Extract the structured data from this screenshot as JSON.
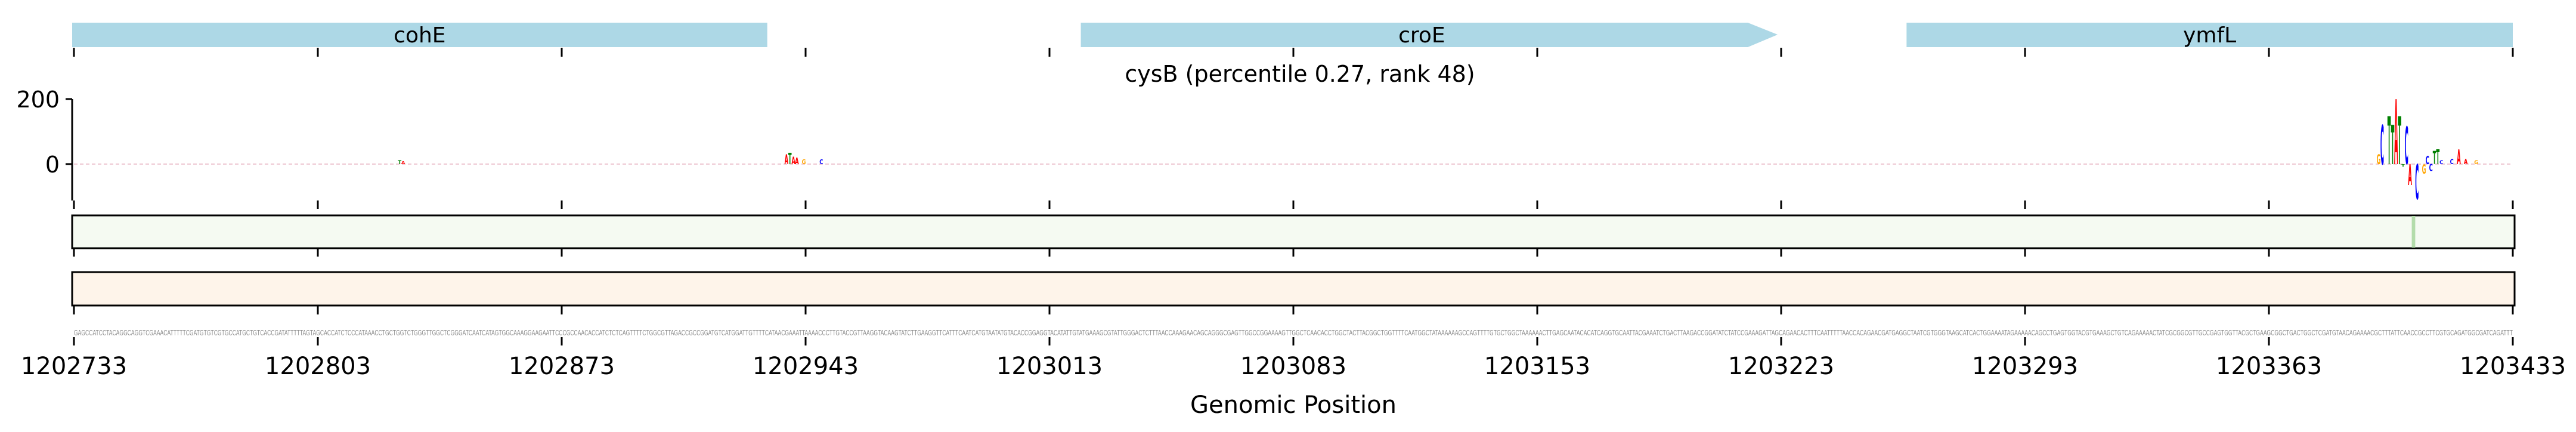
{
  "chart_data": {
    "type": "sequence-logo",
    "title": "cysB (percentile 0.27, rank 48)",
    "xlabel": "Genomic Position",
    "xlim": [
      1202733,
      1203433
    ],
    "x_ticks": [
      "1202733",
      "1202803",
      "1202873",
      "1202943",
      "1203013",
      "1203083",
      "1203153",
      "1203223",
      "1203293",
      "1203363",
      "1203433"
    ],
    "y_ticks": [
      "200",
      "0"
    ],
    "ylim": [
      -110,
      210
    ],
    "genes": [
      {
        "name": "cohE",
        "start": 1202732,
        "end": 1202932,
        "strand": "none"
      },
      {
        "name": "croE",
        "start": 1203022,
        "end": 1203222,
        "strand": "+"
      },
      {
        "name": "ymfL",
        "start": 1203259,
        "end": 1203433,
        "strand": "none"
      }
    ],
    "logo_letters": [
      {
        "pos": 93,
        "base": "T",
        "value": 12
      },
      {
        "pos": 94,
        "base": "A",
        "value": 10
      },
      {
        "pos": 204,
        "base": "A",
        "value": 30
      },
      {
        "pos": 205,
        "base": "T",
        "value": 35
      },
      {
        "pos": 206,
        "base": "A",
        "value": 22
      },
      {
        "pos": 207,
        "base": "A",
        "value": 20
      },
      {
        "pos": 209,
        "base": "G",
        "value": 14
      },
      {
        "pos": 214,
        "base": "C",
        "value": 14
      },
      {
        "pos": 661,
        "base": "G",
        "value": 30
      },
      {
        "pos": 662,
        "base": "C",
        "value": 121
      },
      {
        "pos": 664,
        "base": "T",
        "value": 147
      },
      {
        "pos": 665,
        "base": "T",
        "value": 121
      },
      {
        "pos": 666,
        "base": "A",
        "value": 200
      },
      {
        "pos": 667,
        "base": "T",
        "value": 147
      },
      {
        "pos": 668,
        "base": "T",
        "value": -8
      },
      {
        "pos": 669,
        "base": "C",
        "value": 116
      },
      {
        "pos": 670,
        "base": "A",
        "value": -64
      },
      {
        "pos": 672,
        "base": "C",
        "value": -108
      },
      {
        "pos": 674,
        "base": "G",
        "value": -29
      },
      {
        "pos": 675,
        "base": "C",
        "value": 25
      },
      {
        "pos": 676,
        "base": "C",
        "value": -22
      },
      {
        "pos": 677,
        "base": "T",
        "value": 40
      },
      {
        "pos": 678,
        "base": "T",
        "value": 45
      },
      {
        "pos": 679,
        "base": "C",
        "value": 12
      },
      {
        "pos": 682,
        "base": "C",
        "value": 15
      },
      {
        "pos": 684,
        "base": "A",
        "value": 45
      },
      {
        "pos": 686,
        "base": "A",
        "value": 15
      },
      {
        "pos": 689,
        "base": "G",
        "value": 12
      }
    ],
    "track1_highlight_pos": 671,
    "sequence": "GAGCCATCCTACAGGCAGGTCGAAACATTTTTCGATGTGTCGTGCCATGCTGTCACCGATATTTTTAGTAGCACCATCTCCCATAAACCTGCTGGTCTGGGTTGGCTCGGGATCAATCATAGTGGCAAAGGAAGAATTCCCGCCAACACCATCTCTCAGTTTTCTGGCGTTAGACCGCCGGATGTCATGGATTGTTTTCATAACGAAATTAAAACCCTTGTACCGTTAAGGTACAAGTATCTTGAAGGTTCATTTCAATCATGTAATATGTACACCGGAGGTACATATTGTATGAAAGCGTATTGGGACTCTTTAACCAAAGAACAGCAGGGCGAGTTGGCCGGAAAAGTTGGCTCAACACCTGGCTACTTACGGCTGGTTTTCAATGGCTATAAAAAAGCCAGTTTTGTGCTGGCTAAAAAACTTGAGCAATACACATCAGGTGCAATTACGAAATCTGACTTAAGACCGGATATCTATCCGAAAGATTAGCAGAACACTTTCAATTTTTAACCACAGAACGATGAGGCTAATCGTGGGTAAGCATCACTGGAAAATAGAAAAACAGCCTGAGTGGTACGTGAAAGCTGTCAGAAAAACTATCGCGGCGTTGCCGAGTGGTTACGCTGAAGCGGCTGACTGGCTCGATGTAACAGAAAACGCTTTATTCAACCGCCTTCGTGCAGATGGCGATCAGATTT",
    "colors": {
      "A": "#ff0000",
      "C": "#0000ff",
      "G": "#ffa500",
      "T": "#008000",
      "gene": "#add8e6",
      "track1": "#f5faf2",
      "track1_highlight": "#b3dcab",
      "track2": "#fef4ea"
    }
  }
}
